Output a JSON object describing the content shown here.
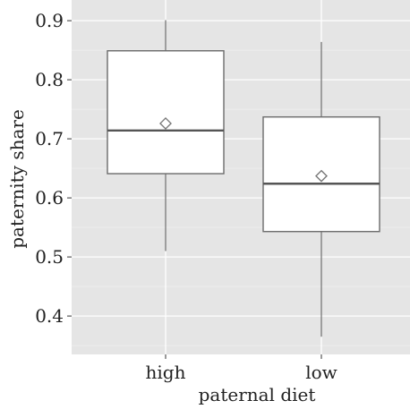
{
  "chart_data": {
    "type": "box",
    "xlabel": "paternal diet",
    "ylabel": "paternity share",
    "categories": [
      "high",
      "low"
    ],
    "ylim": [
      0.335,
      0.935
    ],
    "y_ticks": [
      0.4,
      0.5,
      0.6,
      0.7,
      0.8,
      0.9
    ],
    "y_tick_labels": [
      "0.4",
      "0.5",
      "0.6",
      "0.7",
      "0.8",
      "0.9"
    ],
    "boxes": [
      {
        "category": "high",
        "whisker_low": 0.51,
        "q1": 0.641,
        "median": 0.714,
        "q3": 0.849,
        "whisker_high": 0.901,
        "mean": 0.726
      },
      {
        "category": "low",
        "whisker_low": 0.365,
        "q1": 0.543,
        "median": 0.624,
        "q3": 0.737,
        "whisker_high": 0.864,
        "mean": 0.637
      }
    ],
    "grid": true,
    "legend": "none",
    "colors": {
      "panel": "#e5e5e5",
      "grid_major": "#ffffff",
      "grid_minor": "#f0f0f0",
      "box_fill": "#ffffff",
      "box_stroke": "#6b6b6b",
      "median": "#555555",
      "mean_marker": "#777777",
      "text": "#222222"
    }
  }
}
